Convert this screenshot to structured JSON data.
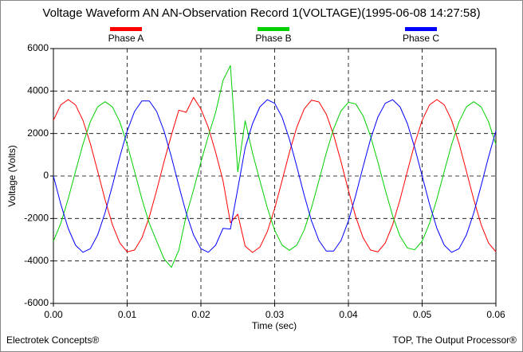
{
  "chart_data": {
    "type": "line",
    "title": "Voltage Waveform AN AN-Observation Record 1(VOLTAGE)(1995-06-08 14:27:58)",
    "x_label": "Time (sec)",
    "y_label": "Voltage (Volts)",
    "footer_left": "Electrotek Concepts®",
    "footer_right": "TOP, The Output Processor®",
    "x": [
      0,
      0.001,
      0.002,
      0.003,
      0.004,
      0.005,
      0.006,
      0.007,
      0.008,
      0.009,
      0.01,
      0.011,
      0.012,
      0.013,
      0.014,
      0.015,
      0.016,
      0.017,
      0.018,
      0.019,
      0.02,
      0.021,
      0.022,
      0.023,
      0.024,
      0.025,
      0.026,
      0.027,
      0.028,
      0.029,
      0.03,
      0.031,
      0.032,
      0.033,
      0.034,
      0.035,
      0.036,
      0.037,
      0.038,
      0.039,
      0.04,
      0.041,
      0.042,
      0.043,
      0.044,
      0.045,
      0.046,
      0.047,
      0.048,
      0.049,
      0.05,
      0.051,
      0.052,
      0.053,
      0.054,
      0.055,
      0.056,
      0.057,
      0.058,
      0.059,
      0.06
    ],
    "series": [
      {
        "name": "Phase A",
        "color": "#ff0000",
        "values": [
          2624,
          3348,
          3600,
          3348,
          2624,
          1533,
          226,
          -1112,
          -2294,
          -3154,
          -3572,
          -3488,
          -2912,
          -1929,
          -675,
          675,
          1929,
          3100,
          3000,
          3700,
          3154,
          2294,
          1112,
          -226,
          -2200,
          -1800,
          -3300,
          -3600,
          -3348,
          -2624,
          -1533,
          -226,
          1112,
          2294,
          3154,
          3572,
          3488,
          2912,
          1929,
          675,
          -675,
          -1929,
          -2912,
          -3488,
          -3572,
          -3154,
          -2294,
          -1112,
          226,
          1533,
          2624,
          3348,
          3600,
          3348,
          2624,
          1533,
          226,
          -1112,
          -2294,
          -3154,
          -3572
        ]
      },
      {
        "name": "Phase B",
        "color": "#00d000",
        "values": [
          -3066,
          -2230,
          -1082,
          221,
          1491,
          2552,
          3255,
          3500,
          3255,
          2552,
          1491,
          221,
          -1082,
          -2230,
          -3066,
          -3900,
          -4300,
          -3500,
          -1876,
          -655,
          655,
          1876,
          3000,
          4500,
          5200,
          200,
          2600,
          1082,
          -221,
          -1491,
          -2552,
          -3255,
          -3500,
          -3255,
          -2552,
          -1491,
          -221,
          1082,
          2230,
          3066,
          3472,
          3392,
          2832,
          1876,
          655,
          -655,
          -1876,
          -2832,
          -3392,
          -3472,
          -3066,
          -2230,
          -1082,
          221,
          1491,
          2552,
          3255,
          3500,
          3255,
          2552,
          1491
        ]
      },
      {
        "name": "Phase C",
        "color": "#0000ff",
        "values": [
          0,
          -1325,
          -2466,
          -3258,
          -3593,
          -3424,
          -2776,
          -1735,
          -450,
          896,
          2117,
          3038,
          3535,
          3535,
          3038,
          2117,
          896,
          -450,
          -1735,
          -2776,
          -3424,
          -3593,
          -3258,
          -2466,
          -2500,
          -600,
          1325,
          2466,
          3258,
          3593,
          3424,
          2776,
          1735,
          450,
          -896,
          -2117,
          -3038,
          -3535,
          -3535,
          -3038,
          -2117,
          -896,
          450,
          1735,
          2776,
          3424,
          3593,
          3258,
          2466,
          1325,
          0,
          -1325,
          -2466,
          -3258,
          -3593,
          -3424,
          -2776,
          -1735,
          -450,
          896,
          2117
        ]
      }
    ],
    "xlim": [
      0,
      0.06
    ],
    "xticks": [
      {
        "value": 0,
        "label": "0.00"
      },
      0.01,
      0.02,
      0.03,
      0.04,
      0.05,
      0.06
    ],
    "ylim": [
      -6000,
      6000
    ],
    "yticks": [
      -6000,
      -4000,
      -2000,
      0,
      2000,
      4000,
      6000
    ],
    "grid": true
  }
}
